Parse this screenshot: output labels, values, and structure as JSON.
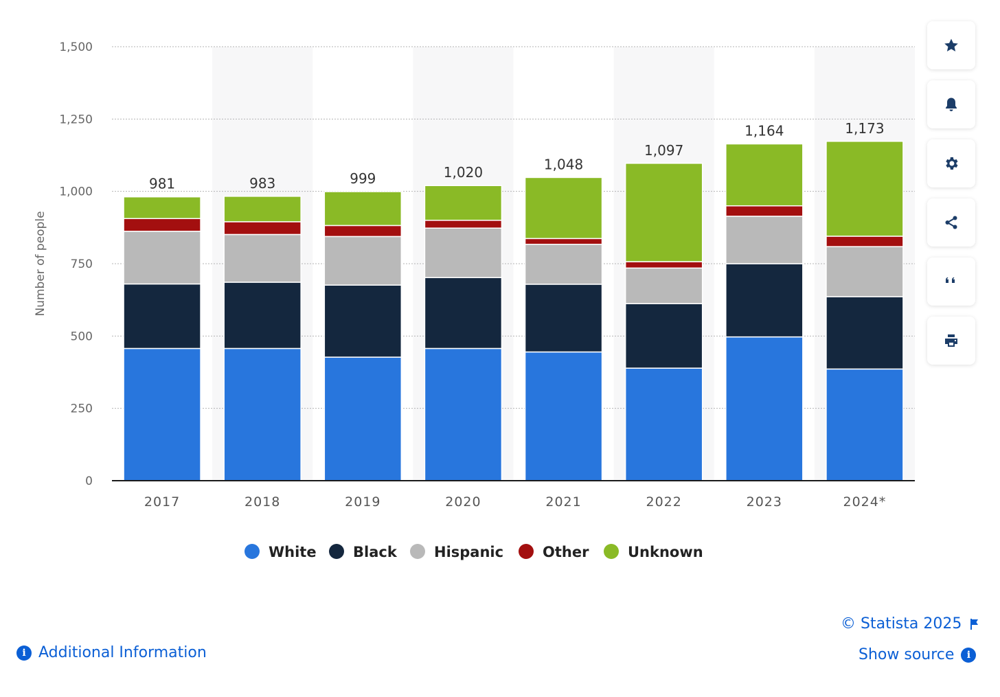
{
  "chart_data": {
    "type": "bar",
    "stacked": true,
    "categories": [
      "2017",
      "2018",
      "2019",
      "2020",
      "2021",
      "2022",
      "2023",
      "2024*"
    ],
    "ylabel": "Number of people",
    "ylim": [
      0,
      1500
    ],
    "yticks": [
      "0",
      "250",
      "500",
      "750",
      "1,000",
      "1,250",
      "1,500"
    ],
    "yticks_values": [
      0,
      250,
      500,
      750,
      1000,
      1250,
      1500
    ],
    "totals": [
      981,
      983,
      999,
      1020,
      1048,
      1097,
      1164,
      1173
    ],
    "total_labels": [
      "981",
      "983",
      "999",
      "1,020",
      "1,048",
      "1,097",
      "1,164",
      "1,173"
    ],
    "series": [
      {
        "name": "White",
        "color": "#2876dd",
        "values": [
          457,
          457,
          427,
          457,
          445,
          389,
          497,
          386
        ]
      },
      {
        "name": "Black",
        "color": "#14273e",
        "values": [
          223,
          229,
          249,
          245,
          234,
          223,
          253,
          250
        ]
      },
      {
        "name": "Hispanic",
        "color": "#b9b9b9",
        "values": [
          182,
          165,
          168,
          171,
          138,
          123,
          164,
          173
        ]
      },
      {
        "name": "Other",
        "color": "#a30f0f",
        "values": [
          44,
          44,
          38,
          27,
          20,
          22,
          36,
          36
        ]
      },
      {
        "name": "Unknown",
        "color": "#8aba26",
        "values": [
          75,
          88,
          117,
          120,
          211,
          340,
          214,
          328
        ]
      }
    ],
    "grid": true,
    "legend_position": "bottom"
  },
  "toolbar": {
    "icons": [
      "star-icon",
      "bell-icon",
      "gear-icon",
      "share-icon",
      "quote-icon",
      "print-icon"
    ]
  },
  "footer": {
    "copyright": "© Statista 2025",
    "show_source": "Show source",
    "additional_info": "Additional Information"
  }
}
